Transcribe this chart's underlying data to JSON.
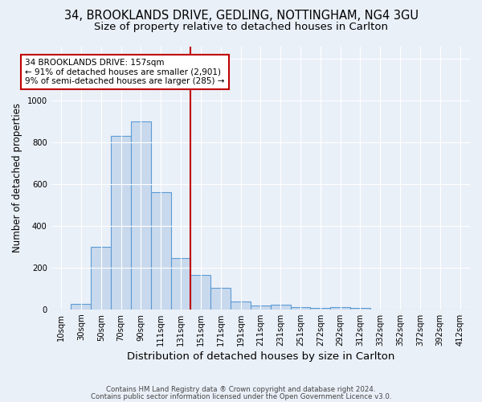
{
  "title1": "34, BROOKLANDS DRIVE, GEDLING, NOTTINGHAM, NG4 3GU",
  "title2": "Size of property relative to detached houses in Carlton",
  "xlabel": "Distribution of detached houses by size in Carlton",
  "ylabel": "Number of detached properties",
  "footnote1": "Contains HM Land Registry data ® Crown copyright and database right 2024.",
  "footnote2": "Contains public sector information licensed under the Open Government Licence v3.0.",
  "bar_labels": [
    "10sqm",
    "30sqm",
    "50sqm",
    "70sqm",
    "90sqm",
    "111sqm",
    "131sqm",
    "151sqm",
    "171sqm",
    "191sqm",
    "211sqm",
    "231sqm",
    "251sqm",
    "272sqm",
    "292sqm",
    "312sqm",
    "332sqm",
    "352sqm",
    "372sqm",
    "392sqm",
    "412sqm"
  ],
  "bar_values": [
    0,
    25,
    300,
    830,
    900,
    560,
    245,
    165,
    105,
    38,
    18,
    22,
    10,
    8,
    10,
    8,
    0,
    0,
    0,
    0,
    0
  ],
  "bar_color": "#c9d9ed",
  "bar_edge_color": "#5b9bd5",
  "vline_index": 7,
  "vline_color": "#c00000",
  "annotation_text": "34 BROOKLANDS DRIVE: 157sqm\n← 91% of detached houses are smaller (2,901)\n9% of semi-detached houses are larger (285) →",
  "ylim": [
    0,
    1260
  ],
  "bg_color": "#eaf0f8",
  "plot_bg_color": "#eaf0f8",
  "grid_color": "white",
  "title1_fontsize": 10.5,
  "title2_fontsize": 9.5,
  "xlabel_fontsize": 9.5,
  "ylabel_fontsize": 8.5,
  "tick_fontsize": 7.2,
  "footnote_fontsize": 6.2
}
